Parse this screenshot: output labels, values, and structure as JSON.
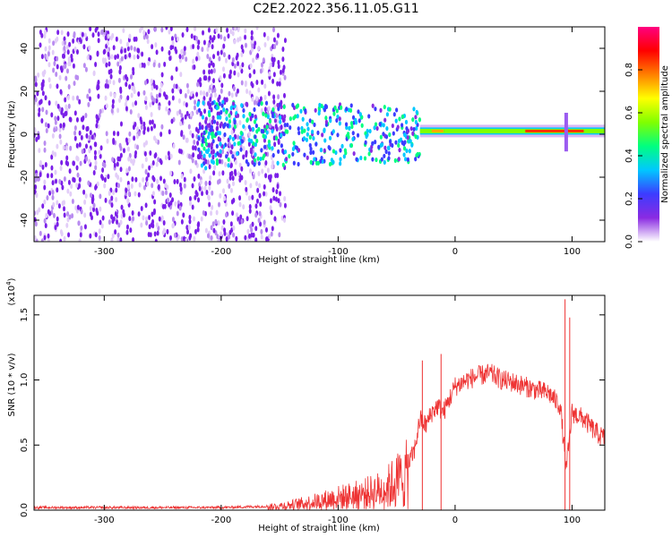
{
  "title": "C2E2.2022.356.11.05.G11",
  "chart_data": [
    {
      "type": "heatmap",
      "xlabel": "Height of straight line (km)",
      "ylabel": "Frequency (Hz)",
      "xlim": [
        -360,
        128
      ],
      "ylim": [
        -50,
        50
      ],
      "xticks": [
        "-300",
        "-200",
        "-100",
        "0",
        "100"
      ],
      "yticks": [
        "-40",
        "-20",
        "0",
        "20",
        "40"
      ],
      "colorbar": {
        "label": "Normalized spectral amplitude",
        "range": [
          0,
          1
        ],
        "ticks": [
          "0.0",
          "0.2",
          "0.4",
          "0.6",
          "0.8"
        ],
        "colormap": [
          "#ffffff",
          "#8a2be2",
          "#3c3cff",
          "#00c8ff",
          "#00ff80",
          "#80ff00",
          "#ffff00",
          "#ff8000",
          "#ff0000",
          "#ff0080"
        ]
      },
      "features": {
        "noise_region_x": [
          -360,
          -155
        ],
        "carrier_frequency_hz": 1.5,
        "carrier_start_x": -30,
        "spur_x": 95
      }
    },
    {
      "type": "line",
      "xlabel": "Height of straight line (km)",
      "ylabel": "SNR (10 * v/v)",
      "scale_label": "(x10",
      "scale_exp": "4",
      "xlim": [
        -360,
        128
      ],
      "ylim": [
        0,
        1.65
      ],
      "xticks": [
        "-300",
        "-200",
        "-100",
        "0",
        "100"
      ],
      "yticks": [
        "0.0",
        "0.5",
        "1.0",
        "1.5"
      ],
      "line_color": "#ee3333",
      "series": [
        {
          "x": [
            -360,
            -300,
            -250,
            -200,
            -160,
            -140,
            -120,
            -100,
            -80,
            -60,
            -50,
            -40,
            -35,
            -30,
            -25,
            -20,
            -15,
            -10,
            -5,
            0,
            10,
            20,
            30,
            40,
            50,
            60,
            70,
            80,
            90,
            95,
            100,
            110,
            120,
            128
          ],
          "y": [
            0.02,
            0.02,
            0.02,
            0.02,
            0.03,
            0.05,
            0.08,
            0.12,
            0.15,
            0.2,
            0.28,
            0.35,
            0.45,
            0.7,
            0.65,
            0.75,
            0.8,
            0.75,
            0.85,
            0.95,
            1.0,
            1.03,
            1.05,
            1.0,
            0.98,
            0.95,
            0.92,
            0.9,
            0.8,
            0.3,
            0.75,
            0.7,
            0.6,
            0.55
          ]
        }
      ],
      "spikes": [
        {
          "x": -28,
          "y": 1.15
        },
        {
          "x": -12,
          "y": 1.2
        },
        {
          "x": 94,
          "y": 1.62
        },
        {
          "x": 98,
          "y": 1.48
        }
      ]
    }
  ]
}
